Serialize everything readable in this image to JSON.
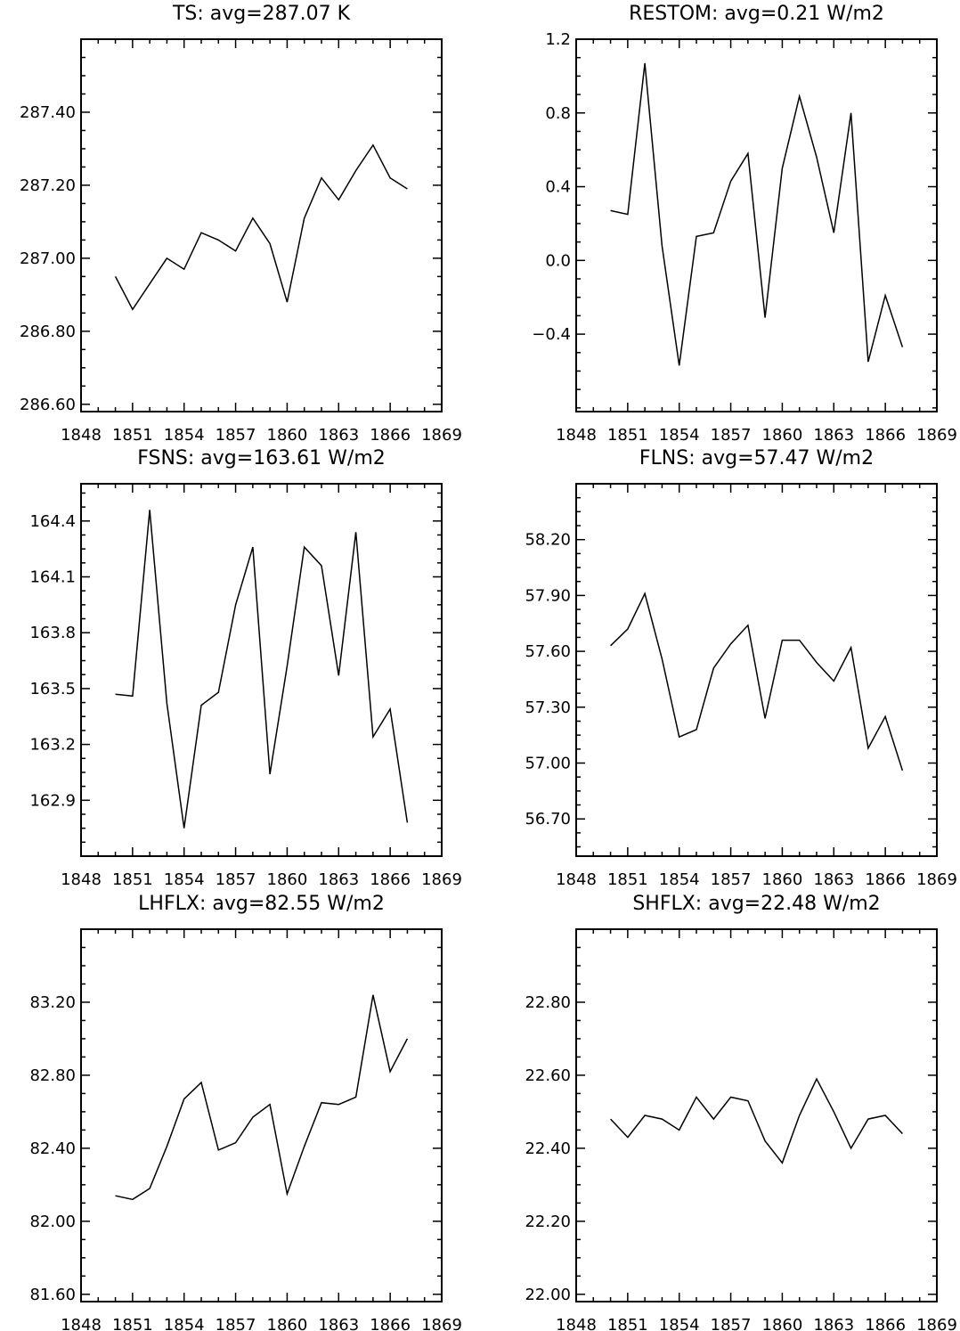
{
  "chart_data": [
    {
      "type": "line",
      "title": "TS: avg=287.07 K",
      "x": [
        1850,
        1851,
        1852,
        1853,
        1854,
        1855,
        1856,
        1857,
        1858,
        1859,
        1860,
        1861,
        1862,
        1863,
        1864,
        1865,
        1866,
        1867
      ],
      "values": [
        286.95,
        286.86,
        286.93,
        287.0,
        286.97,
        287.07,
        287.05,
        287.02,
        287.11,
        287.04,
        286.88,
        287.11,
        287.22,
        287.16,
        287.24,
        287.31,
        287.22,
        287.19
      ],
      "xlim": [
        1848,
        1869
      ],
      "ylim": [
        286.58,
        287.6
      ],
      "xticks": [
        "1848",
        "1851",
        "1854",
        "1857",
        "1860",
        "1863",
        "1866",
        "1869"
      ],
      "yticks": [
        "286.60",
        "286.80",
        "287.00",
        "287.20",
        "287.40"
      ],
      "ytick_values": [
        286.6,
        286.8,
        287.0,
        287.2,
        287.4
      ]
    },
    {
      "type": "line",
      "title": "RESTOM: avg=0.21 W/m2",
      "x": [
        1850,
        1851,
        1852,
        1853,
        1854,
        1855,
        1856,
        1857,
        1858,
        1859,
        1860,
        1861,
        1862,
        1863,
        1864,
        1865,
        1866,
        1867
      ],
      "values": [
        0.27,
        0.25,
        1.07,
        0.08,
        -0.57,
        0.13,
        0.15,
        0.43,
        0.58,
        -0.31,
        0.5,
        0.89,
        0.56,
        0.15,
        0.8,
        -0.55,
        -0.19,
        -0.47
      ],
      "xlim": [
        1848,
        1869
      ],
      "ylim": [
        -0.82,
        1.2
      ],
      "xticks": [
        "1848",
        "1851",
        "1854",
        "1857",
        "1860",
        "1863",
        "1866",
        "1869"
      ],
      "yticks": [
        "−0.4",
        "0.0",
        "0.4",
        "0.8",
        "1.2"
      ],
      "ytick_values": [
        -0.4,
        0.0,
        0.4,
        0.8,
        1.2
      ]
    },
    {
      "type": "line",
      "title": "FSNS: avg=163.61 W/m2",
      "x": [
        1850,
        1851,
        1852,
        1853,
        1854,
        1855,
        1856,
        1857,
        1858,
        1859,
        1860,
        1861,
        1862,
        1863,
        1864,
        1865,
        1866,
        1867
      ],
      "values": [
        163.47,
        163.46,
        164.46,
        163.42,
        162.75,
        163.41,
        163.48,
        163.95,
        164.26,
        163.04,
        163.62,
        164.26,
        164.16,
        163.57,
        164.34,
        163.24,
        163.39,
        162.78
      ],
      "xlim": [
        1848,
        1869
      ],
      "ylim": [
        162.6,
        164.6
      ],
      "xticks": [
        "1848",
        "1851",
        "1854",
        "1857",
        "1860",
        "1863",
        "1866",
        "1869"
      ],
      "yticks": [
        "162.9",
        "163.2",
        "163.5",
        "163.8",
        "164.1",
        "164.4"
      ],
      "ytick_values": [
        162.9,
        163.2,
        163.5,
        163.8,
        164.1,
        164.4
      ]
    },
    {
      "type": "line",
      "title": "FLNS: avg=57.47 W/m2",
      "x": [
        1850,
        1851,
        1852,
        1853,
        1854,
        1855,
        1856,
        1857,
        1858,
        1859,
        1860,
        1861,
        1862,
        1863,
        1864,
        1865,
        1866,
        1867
      ],
      "values": [
        57.63,
        57.72,
        57.91,
        57.56,
        57.14,
        57.18,
        57.51,
        57.64,
        57.74,
        57.24,
        57.66,
        57.66,
        57.54,
        57.44,
        57.62,
        57.08,
        57.25,
        56.96
      ],
      "xlim": [
        1848,
        1869
      ],
      "ylim": [
        56.5,
        58.5
      ],
      "xticks": [
        "1848",
        "1851",
        "1854",
        "1857",
        "1860",
        "1863",
        "1866",
        "1869"
      ],
      "yticks": [
        "56.70",
        "57.00",
        "57.30",
        "57.60",
        "57.90",
        "58.20"
      ],
      "ytick_values": [
        56.7,
        57.0,
        57.3,
        57.6,
        57.9,
        58.2
      ]
    },
    {
      "type": "line",
      "title": "LHFLX: avg=82.55 W/m2",
      "x": [
        1850,
        1851,
        1852,
        1853,
        1854,
        1855,
        1856,
        1857,
        1858,
        1859,
        1860,
        1861,
        1862,
        1863,
        1864,
        1865,
        1866,
        1867
      ],
      "values": [
        82.14,
        82.12,
        82.18,
        82.41,
        82.67,
        82.76,
        82.39,
        82.43,
        82.57,
        82.64,
        82.15,
        82.41,
        82.65,
        82.64,
        82.68,
        83.24,
        82.82,
        83.0
      ],
      "xlim": [
        1848,
        1869
      ],
      "ylim": [
        81.56,
        83.6
      ],
      "xticks": [
        "1848",
        "1851",
        "1854",
        "1857",
        "1860",
        "1863",
        "1866",
        "1869"
      ],
      "yticks": [
        "81.60",
        "82.00",
        "82.40",
        "82.80",
        "83.20"
      ],
      "ytick_values": [
        81.6,
        82.0,
        82.4,
        82.8,
        83.2
      ]
    },
    {
      "type": "line",
      "title": "SHFLX: avg=22.48 W/m2",
      "x": [
        1850,
        1851,
        1852,
        1853,
        1854,
        1855,
        1856,
        1857,
        1858,
        1859,
        1860,
        1861,
        1862,
        1863,
        1864,
        1865,
        1866,
        1867
      ],
      "values": [
        22.48,
        22.43,
        22.49,
        22.48,
        22.45,
        22.54,
        22.48,
        22.54,
        22.53,
        22.42,
        22.36,
        22.49,
        22.59,
        22.5,
        22.4,
        22.48,
        22.49,
        22.44
      ],
      "xlim": [
        1848,
        1869
      ],
      "ylim": [
        21.98,
        23.0
      ],
      "xticks": [
        "1848",
        "1851",
        "1854",
        "1857",
        "1860",
        "1863",
        "1866",
        "1869"
      ],
      "yticks": [
        "22.00",
        "22.20",
        "22.40",
        "22.60",
        "22.80"
      ],
      "ytick_values": [
        22.0,
        22.2,
        22.4,
        22.6,
        22.8
      ]
    }
  ]
}
